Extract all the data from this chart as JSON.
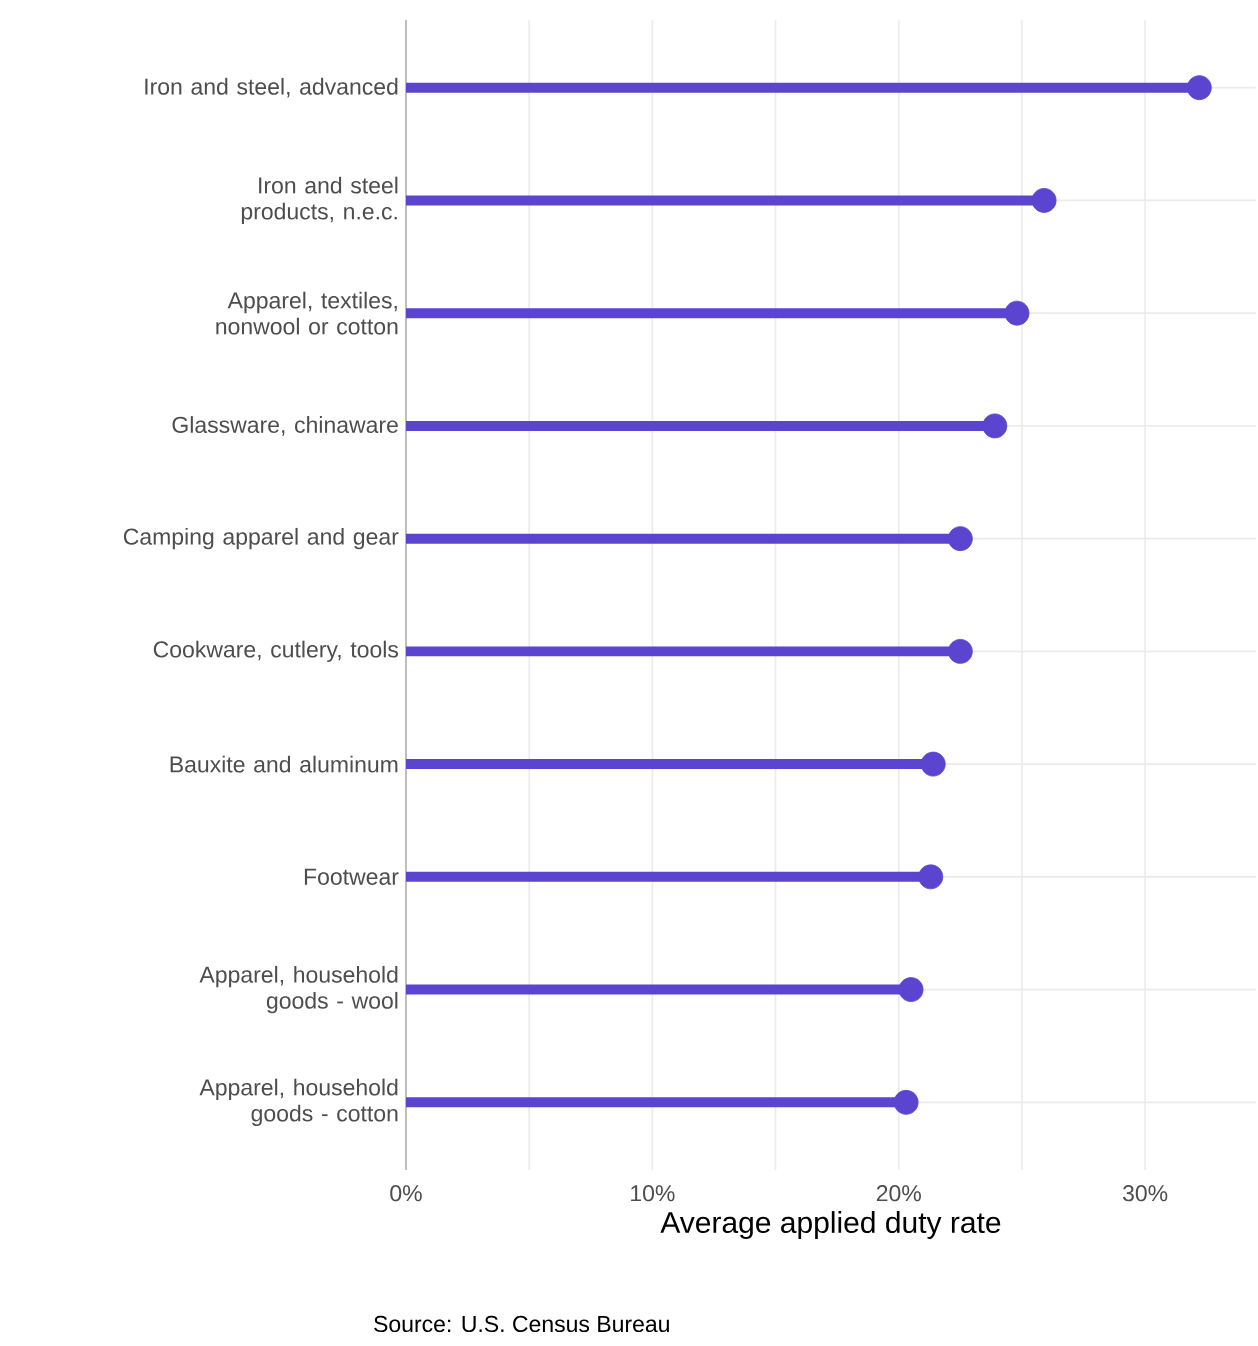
{
  "chart_data": {
    "type": "lollipop",
    "orientation": "horizontal",
    "categories": [
      "Iron and steel, advanced",
      "Iron and steel products, n.e.c.",
      "Apparel, textiles, nonwool or cotton",
      "Glassware, chinaware",
      "Camping apparel and gear",
      "Cookware, cutlery, tools",
      "Bauxite and aluminum",
      "Footwear",
      "Apparel, household goods - wool",
      "Apparel, household goods - cotton"
    ],
    "values": [
      32.2,
      25.9,
      24.8,
      23.9,
      22.5,
      22.5,
      21.4,
      21.3,
      20.5,
      20.3
    ],
    "color": "#5b44cf",
    "xlim": [
      0,
      34.5
    ],
    "xticks": [
      {
        "value": 0,
        "label": "0%"
      },
      {
        "value": 5,
        "label": null
      },
      {
        "value": 10,
        "label": "10%"
      },
      {
        "value": 15,
        "label": null
      },
      {
        "value": 20,
        "label": "20%"
      },
      {
        "value": 25,
        "label": null
      },
      {
        "value": 30,
        "label": "30%"
      }
    ],
    "xlabel": "Average applied duty rate",
    "grid": true,
    "marker": "circle",
    "annotations": [
      "Source: U.S. Census Bureau"
    ]
  }
}
